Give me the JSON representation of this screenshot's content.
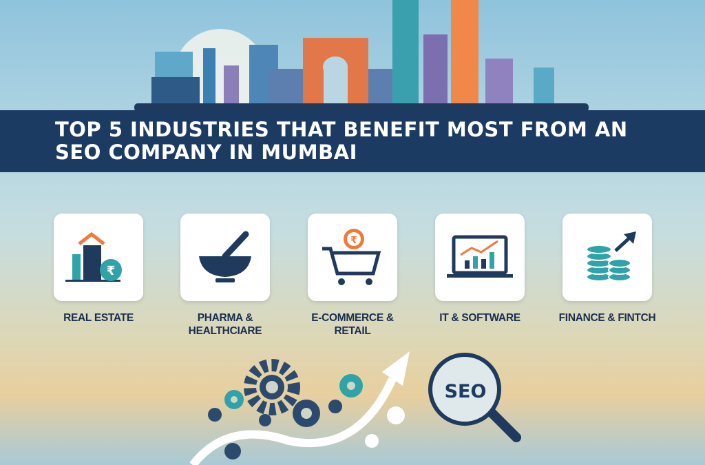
{
  "title": "TOP 5 INDUSTRIES THAT BENEFIT MOST FROM AN SEO COMPANY IN MUMBAI",
  "industries": [
    {
      "label": "REAL ESTATE",
      "icon": "building-rupee-icon"
    },
    {
      "label": "PHARMA & HEALTHCIARE",
      "icon": "mortar-pestle-icon"
    },
    {
      "label": "E-COMMERCE & RETAIL",
      "icon": "shopping-cart-rupee-icon"
    },
    {
      "label": "IT & SOFTWARE",
      "icon": "laptop-chart-icon"
    },
    {
      "label": "FINANCE & FINTCH",
      "icon": "coins-growth-icon"
    }
  ],
  "seo_badge": "SEO",
  "colors": {
    "banner": "#1c3b63",
    "orange": "#f07a3a",
    "teal": "#2fa3a8",
    "navy": "#1f3a5c"
  }
}
